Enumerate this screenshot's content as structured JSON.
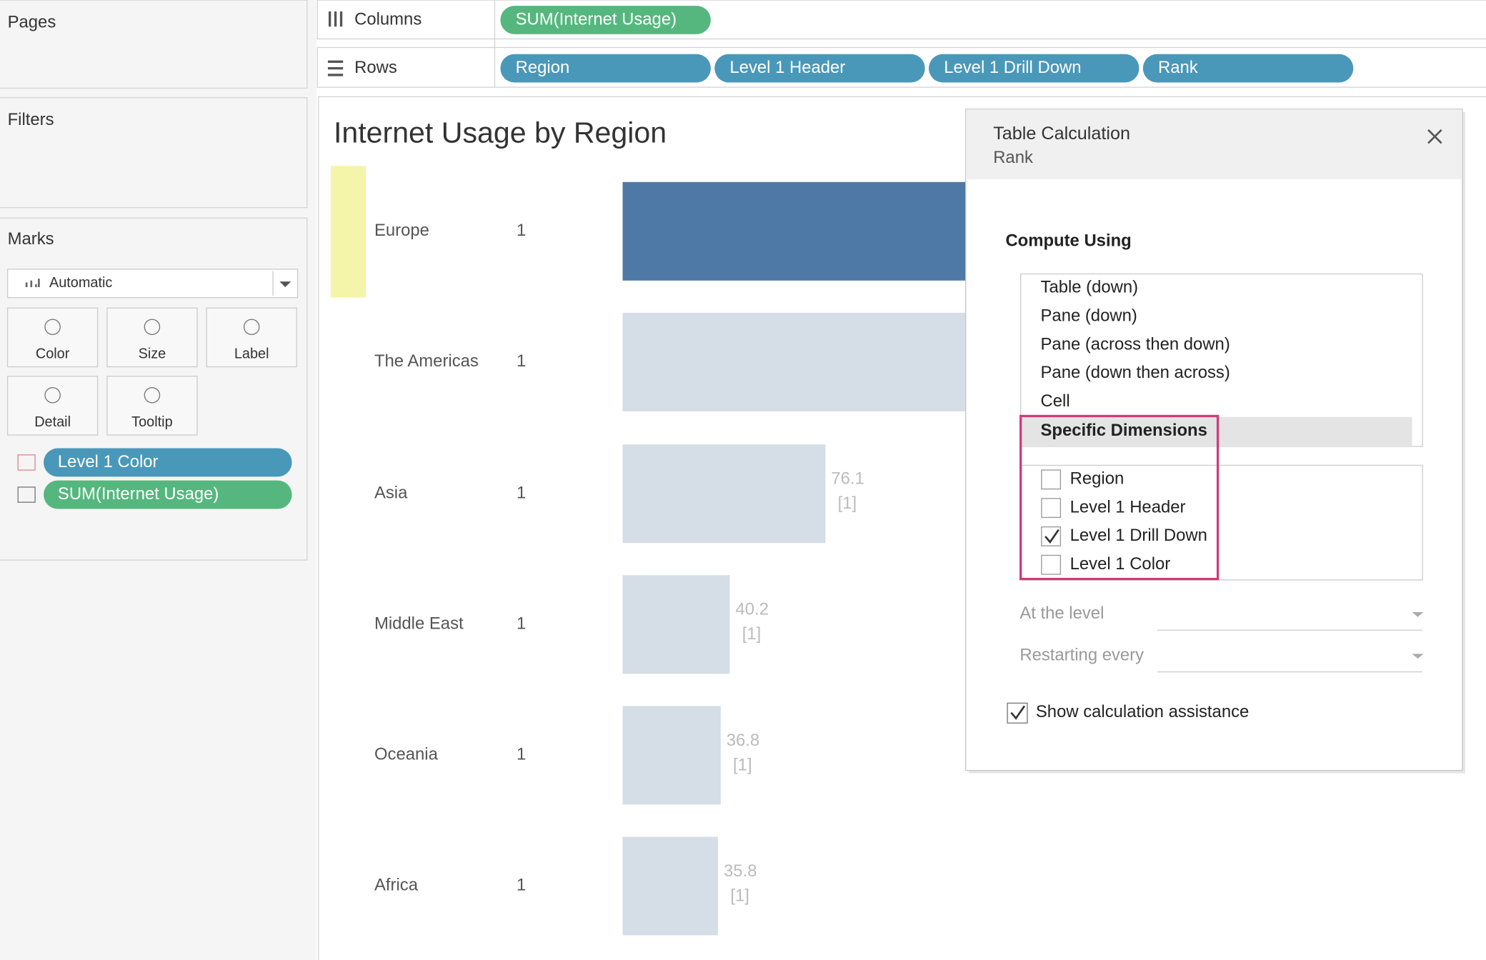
{
  "shelves": {
    "pages": "Pages",
    "filters": "Filters",
    "columns": {
      "label": "Columns",
      "pills": [
        "SUM(Internet Usage)"
      ]
    },
    "rows": {
      "label": "Rows",
      "pills": [
        "Region",
        "Level 1 Header",
        "Level 1 Drill Down",
        "Rank"
      ]
    }
  },
  "marks": {
    "title": "Marks",
    "mark_type": "Automatic",
    "buttons": [
      "Color",
      "Size",
      "Label",
      "Detail",
      "Tooltip"
    ],
    "pills": [
      "Level 1 Color",
      "SUM(Internet Usage)"
    ]
  },
  "chart_data": {
    "type": "bar",
    "title": "Internet Usage by Region",
    "categories": [
      "Europe",
      "The Americas",
      "Asia",
      "Middle East",
      "Oceania",
      "Africa"
    ],
    "rank": [
      1,
      1,
      1,
      1,
      1,
      1
    ],
    "values": [
      null,
      null,
      76.1,
      40.2,
      36.8,
      35.8
    ],
    "rank_labels": [
      null,
      null,
      "[1]",
      "[1]",
      "[1]",
      "[1]"
    ],
    "colors": [
      "#4e79a7",
      "#d5dee7",
      "#d5dee7",
      "#d5dee7",
      "#d5dee7",
      "#d5dee7"
    ]
  },
  "dialog": {
    "title": "Table Calculation",
    "subtitle": "Rank",
    "section": "Compute Using",
    "options": [
      "Table (down)",
      "Pane (down)",
      "Pane (across then down)",
      "Pane (down then across)",
      "Cell",
      "Specific Dimensions"
    ],
    "selected": 5,
    "dimensions": [
      {
        "label": "Region",
        "checked": false
      },
      {
        "label": "Level 1 Header",
        "checked": false
      },
      {
        "label": "Level 1 Drill Down",
        "checked": true
      },
      {
        "label": "Level 1 Color",
        "checked": false
      }
    ],
    "at_level": "At the level",
    "restarting": "Restarting every",
    "assist": {
      "label": "Show calculation assistance",
      "checked": true
    }
  }
}
